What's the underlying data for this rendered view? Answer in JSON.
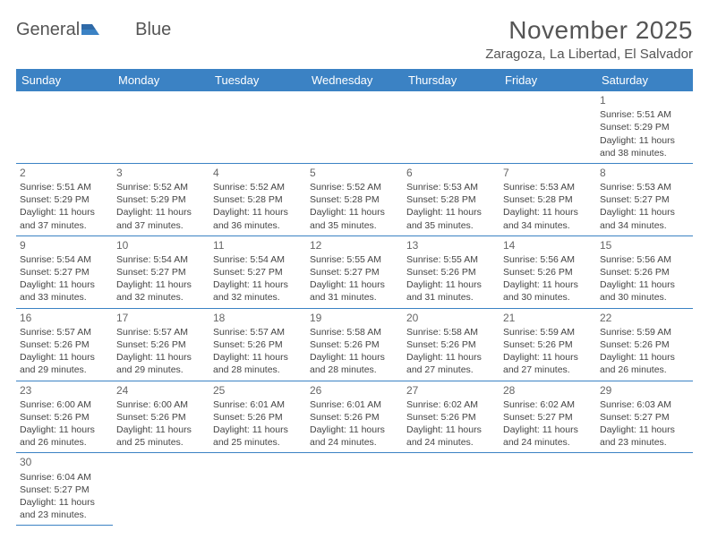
{
  "logo": {
    "part1": "General",
    "part2": "Blue"
  },
  "title": "November 2025",
  "location": "Zaragoza, La Libertad, El Salvador",
  "colors": {
    "header_bg": "#3b82c4",
    "header_fg": "#ffffff",
    "rule": "#3b82c4"
  },
  "weekdays": [
    "Sunday",
    "Monday",
    "Tuesday",
    "Wednesday",
    "Thursday",
    "Friday",
    "Saturday"
  ],
  "first_weekday_index": 6,
  "days": [
    {
      "n": 1,
      "sunrise": "5:51 AM",
      "sunset": "5:29 PM",
      "daylight": "11 hours and 38 minutes."
    },
    {
      "n": 2,
      "sunrise": "5:51 AM",
      "sunset": "5:29 PM",
      "daylight": "11 hours and 37 minutes."
    },
    {
      "n": 3,
      "sunrise": "5:52 AM",
      "sunset": "5:29 PM",
      "daylight": "11 hours and 37 minutes."
    },
    {
      "n": 4,
      "sunrise": "5:52 AM",
      "sunset": "5:28 PM",
      "daylight": "11 hours and 36 minutes."
    },
    {
      "n": 5,
      "sunrise": "5:52 AM",
      "sunset": "5:28 PM",
      "daylight": "11 hours and 35 minutes."
    },
    {
      "n": 6,
      "sunrise": "5:53 AM",
      "sunset": "5:28 PM",
      "daylight": "11 hours and 35 minutes."
    },
    {
      "n": 7,
      "sunrise": "5:53 AM",
      "sunset": "5:28 PM",
      "daylight": "11 hours and 34 minutes."
    },
    {
      "n": 8,
      "sunrise": "5:53 AM",
      "sunset": "5:27 PM",
      "daylight": "11 hours and 34 minutes."
    },
    {
      "n": 9,
      "sunrise": "5:54 AM",
      "sunset": "5:27 PM",
      "daylight": "11 hours and 33 minutes."
    },
    {
      "n": 10,
      "sunrise": "5:54 AM",
      "sunset": "5:27 PM",
      "daylight": "11 hours and 32 minutes."
    },
    {
      "n": 11,
      "sunrise": "5:54 AM",
      "sunset": "5:27 PM",
      "daylight": "11 hours and 32 minutes."
    },
    {
      "n": 12,
      "sunrise": "5:55 AM",
      "sunset": "5:27 PM",
      "daylight": "11 hours and 31 minutes."
    },
    {
      "n": 13,
      "sunrise": "5:55 AM",
      "sunset": "5:26 PM",
      "daylight": "11 hours and 31 minutes."
    },
    {
      "n": 14,
      "sunrise": "5:56 AM",
      "sunset": "5:26 PM",
      "daylight": "11 hours and 30 minutes."
    },
    {
      "n": 15,
      "sunrise": "5:56 AM",
      "sunset": "5:26 PM",
      "daylight": "11 hours and 30 minutes."
    },
    {
      "n": 16,
      "sunrise": "5:57 AM",
      "sunset": "5:26 PM",
      "daylight": "11 hours and 29 minutes."
    },
    {
      "n": 17,
      "sunrise": "5:57 AM",
      "sunset": "5:26 PM",
      "daylight": "11 hours and 29 minutes."
    },
    {
      "n": 18,
      "sunrise": "5:57 AM",
      "sunset": "5:26 PM",
      "daylight": "11 hours and 28 minutes."
    },
    {
      "n": 19,
      "sunrise": "5:58 AM",
      "sunset": "5:26 PM",
      "daylight": "11 hours and 28 minutes."
    },
    {
      "n": 20,
      "sunrise": "5:58 AM",
      "sunset": "5:26 PM",
      "daylight": "11 hours and 27 minutes."
    },
    {
      "n": 21,
      "sunrise": "5:59 AM",
      "sunset": "5:26 PM",
      "daylight": "11 hours and 27 minutes."
    },
    {
      "n": 22,
      "sunrise": "5:59 AM",
      "sunset": "5:26 PM",
      "daylight": "11 hours and 26 minutes."
    },
    {
      "n": 23,
      "sunrise": "6:00 AM",
      "sunset": "5:26 PM",
      "daylight": "11 hours and 26 minutes."
    },
    {
      "n": 24,
      "sunrise": "6:00 AM",
      "sunset": "5:26 PM",
      "daylight": "11 hours and 25 minutes."
    },
    {
      "n": 25,
      "sunrise": "6:01 AM",
      "sunset": "5:26 PM",
      "daylight": "11 hours and 25 minutes."
    },
    {
      "n": 26,
      "sunrise": "6:01 AM",
      "sunset": "5:26 PM",
      "daylight": "11 hours and 24 minutes."
    },
    {
      "n": 27,
      "sunrise": "6:02 AM",
      "sunset": "5:26 PM",
      "daylight": "11 hours and 24 minutes."
    },
    {
      "n": 28,
      "sunrise": "6:02 AM",
      "sunset": "5:27 PM",
      "daylight": "11 hours and 24 minutes."
    },
    {
      "n": 29,
      "sunrise": "6:03 AM",
      "sunset": "5:27 PM",
      "daylight": "11 hours and 23 minutes."
    },
    {
      "n": 30,
      "sunrise": "6:04 AM",
      "sunset": "5:27 PM",
      "daylight": "11 hours and 23 minutes."
    }
  ],
  "labels": {
    "sunrise": "Sunrise:",
    "sunset": "Sunset:",
    "daylight": "Daylight:"
  }
}
